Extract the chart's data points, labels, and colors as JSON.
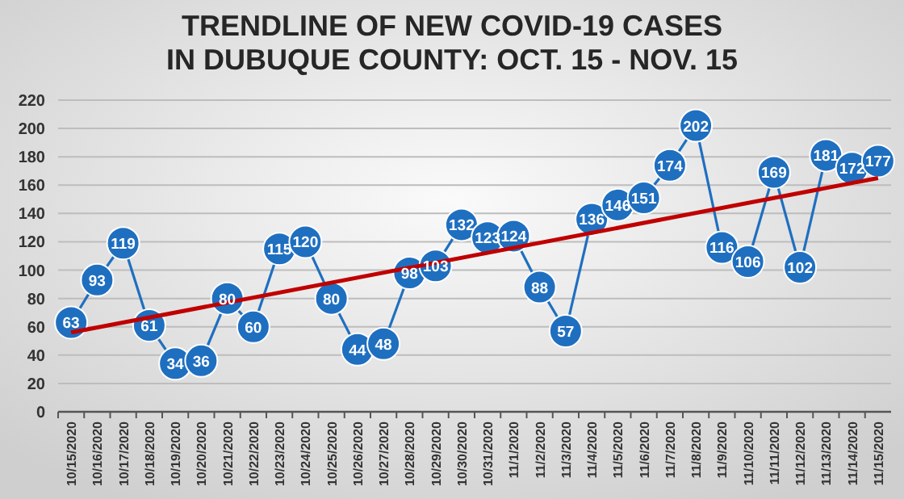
{
  "chart_data": {
    "type": "line",
    "title": "TRENDLINE OF NEW COVID-19 CASES\nIN DUBUQUE COUNTY: OCT. 15 - NOV. 15",
    "categories": [
      "10/15/2020",
      "10/16/2020",
      "10/17/2020",
      "10/18/2020",
      "10/19/2020",
      "10/20/2020",
      "10/21/2020",
      "10/22/2020",
      "10/23/2020",
      "10/24/2020",
      "10/25/2020",
      "10/26/2020",
      "10/27/2020",
      "10/28/2020",
      "10/29/2020",
      "10/30/2020",
      "10/31/2020",
      "11/1/2020",
      "11/2/2020",
      "11/3/2020",
      "11/4/2020",
      "11/5/2020",
      "11/6/2020",
      "11/7/2020",
      "11/8/2020",
      "11/9/2020",
      "11/10/2020",
      "11/11/2020",
      "11/12/2020",
      "11/13/2020",
      "11/14/2020",
      "11/15/2020"
    ],
    "series": [
      {
        "color": "#1f6fc0",
        "marker": "circle",
        "value_labels": [
          "63",
          "93",
          "119",
          "61",
          "34",
          "36",
          "80",
          "60",
          "115",
          "120",
          "80",
          "44",
          "48",
          "98",
          "103",
          "132",
          "123",
          "124",
          "88",
          "57",
          "136",
          "146",
          "151",
          "174",
          "202",
          "116",
          "106",
          "169",
          "102",
          "181",
          "172",
          "177"
        ],
        "values": [
          63,
          93,
          119,
          61,
          34,
          36,
          80,
          60,
          115,
          120,
          80,
          44,
          48,
          98,
          103,
          132,
          123,
          124,
          88,
          57,
          136,
          146,
          151,
          174,
          202,
          116,
          106,
          169,
          102,
          181,
          172,
          177
        ]
      },
      {
        "type": "line",
        "color": "#c00000",
        "marker": "none",
        "x": [
          "10/15/2020",
          "11/15/2020"
        ],
        "values": [
          56,
          165
        ]
      }
    ],
    "ylim": [
      0,
      220
    ],
    "yticks": [
      0,
      20,
      40,
      60,
      80,
      100,
      120,
      140,
      160,
      180,
      200,
      220
    ],
    "grid": "y"
  }
}
